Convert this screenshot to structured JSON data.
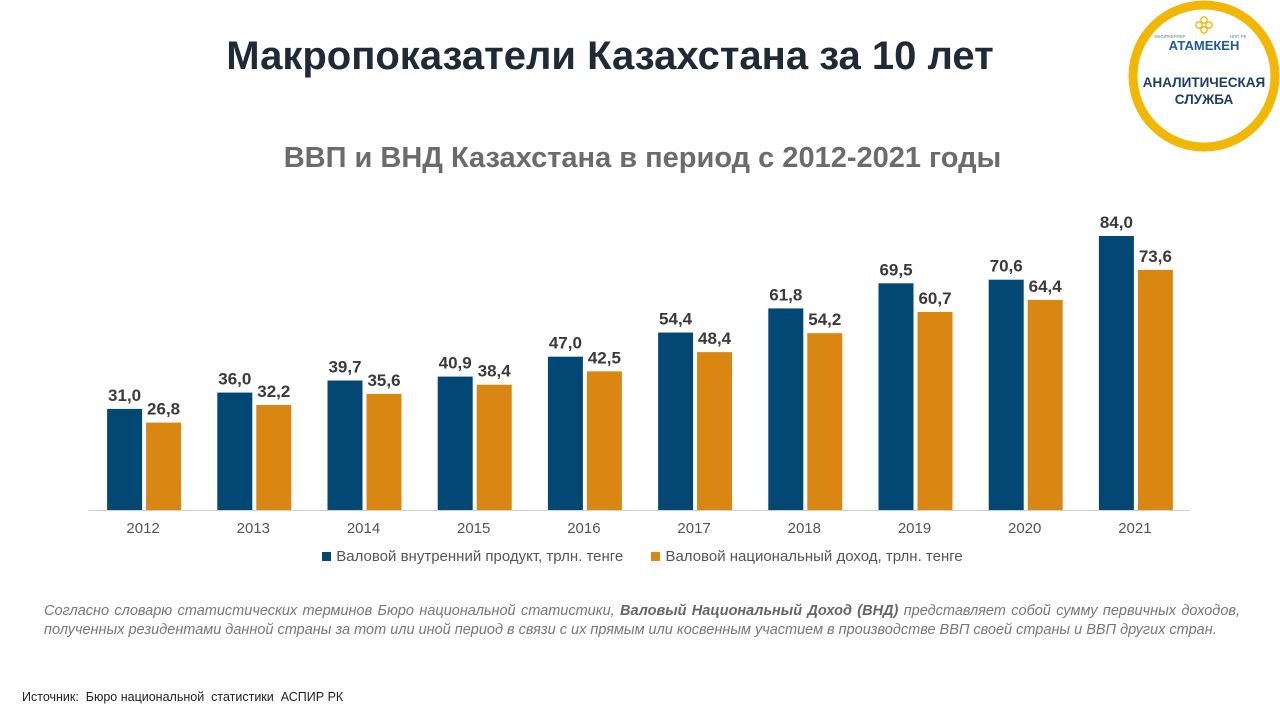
{
  "page": {
    "title": "Макропоказатели Казахстана за 10 лет",
    "logo": {
      "small_left": "КӘСІПКЕРЛЕР",
      "small_right": "НПП РК",
      "brand": "АТАМЕКЕН",
      "line1": "АНАЛИТИЧЕСКАЯ",
      "line2": "СЛУЖБА",
      "ring_color": "#f2b705",
      "brand_color": "#1f5c99"
    },
    "note": {
      "part1": "Согласно словарю статистических терминов Бюро национальной статистики, ",
      "bold": "Валовый Национальный Доход (ВНД)",
      "part2": " представляет собой сумму первичных доходов, полученных резидентами данной страны за тот или иной период в связи с их прямым или косвенным участием в производстве ВВП своей страны и ВВП других стран."
    },
    "source": "Источник:  Бюро национальной  статистики  АСПИР РК"
  },
  "chart_data": {
    "type": "bar",
    "title": "ВВП и ВНД Казахстана в период с 2012-2021 годы",
    "categories": [
      "2012",
      "2013",
      "2014",
      "2015",
      "2016",
      "2017",
      "2018",
      "2019",
      "2020",
      "2021"
    ],
    "series": [
      {
        "name": "Валовой внутренний  продукт, трлн. тенге",
        "color": "#034874",
        "values": [
          31.0,
          36.0,
          39.7,
          40.9,
          47.0,
          54.4,
          61.8,
          69.5,
          70.6,
          84.0
        ],
        "labels": [
          "31,0",
          "36,0",
          "39,7",
          "40,9",
          "47,0",
          "54,4",
          "61,8",
          "69,5",
          "70,6",
          "84,0"
        ]
      },
      {
        "name": "Валовой национальный  доход, трлн.  тенге",
        "color": "#d98612",
        "values": [
          26.8,
          32.2,
          35.6,
          38.4,
          42.5,
          48.4,
          54.2,
          60.7,
          64.4,
          73.6
        ],
        "labels": [
          "26,8",
          "32,2",
          "35,6",
          "38,4",
          "42,5",
          "48,4",
          "54,2",
          "60,7",
          "64,4",
          "73,6"
        ]
      }
    ],
    "ylim": [
      0,
      90
    ],
    "grid": false,
    "legend": "bottom"
  }
}
